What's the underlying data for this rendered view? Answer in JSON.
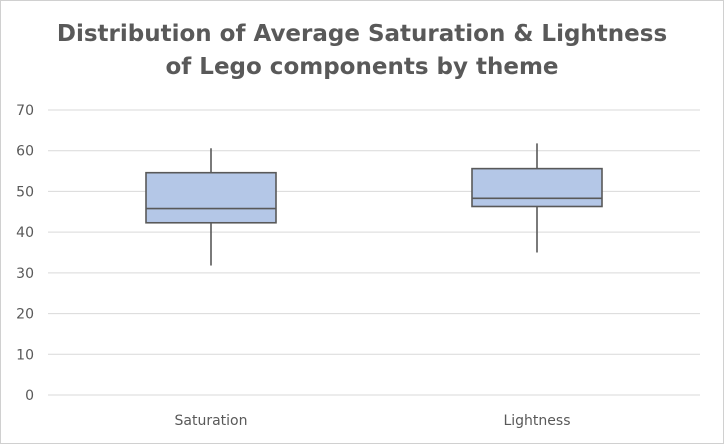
{
  "chart_data": {
    "type": "boxplot",
    "title_lines": [
      "Distribution of Average Saturation & Lightness",
      "of Lego components by theme"
    ],
    "xlabel": "",
    "ylabel": "",
    "ylim": [
      0,
      70
    ],
    "yticks": [
      0,
      10,
      20,
      30,
      40,
      50,
      60,
      70
    ],
    "y_tick_labels": [
      "0",
      "10",
      "20",
      "30",
      "40",
      "50",
      "60",
      "70"
    ],
    "grid": true,
    "legend": "none",
    "categories": [
      "Saturation",
      "Lightness"
    ],
    "series": [
      {
        "category": "Saturation",
        "min": 31.8,
        "q1": 42.3,
        "median": 45.8,
        "q3": 54.6,
        "max": 60.6
      },
      {
        "category": "Lightness",
        "min": 35.0,
        "q1": 46.3,
        "median": 48.3,
        "q3": 55.6,
        "max": 61.8
      }
    ],
    "colors": {
      "box_fill": "#b4c7e7",
      "box_stroke": "#595959",
      "grid": "#d9d9d9",
      "text": "#595959"
    }
  }
}
